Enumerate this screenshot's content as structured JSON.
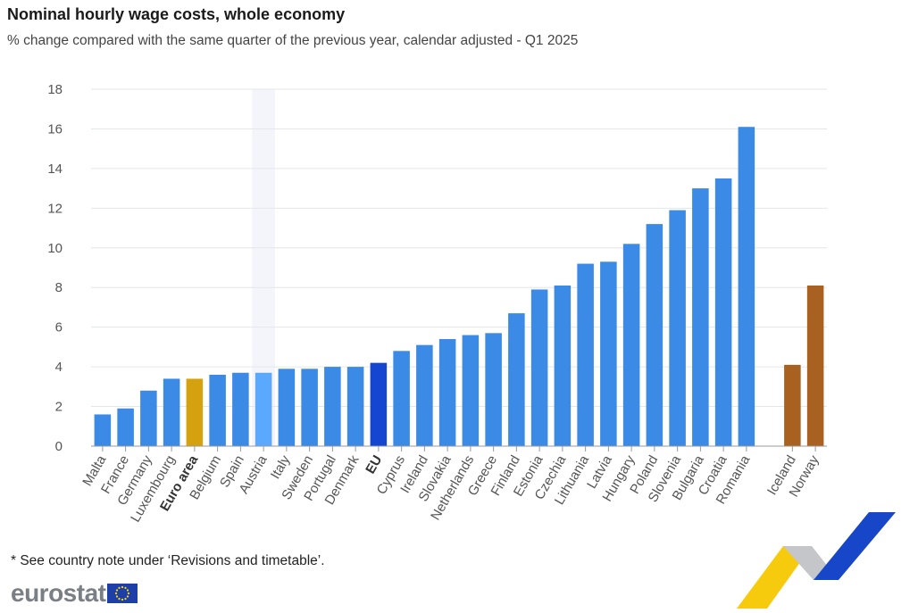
{
  "header": {
    "title": "Nominal hourly wage costs, whole economy",
    "subtitle": "% change compared with the same quarter of the previous year, calendar adjusted - Q1 2025"
  },
  "footnote": "* See country note under ‘Revisions and timetable’.",
  "logo": {
    "text": "eurostat",
    "icon": "eu-flag-icon"
  },
  "colors": {
    "member": "#3b8ae6",
    "euro_area": "#d4a20f",
    "eu": "#1446d2",
    "efta": "#a86120",
    "highlight": "#5aa8ff"
  },
  "chart_data": {
    "type": "bar",
    "title": "Nominal hourly wage costs, whole economy",
    "subtitle": "% change compared with the same quarter of the previous year, calendar adjusted - Q1 2025",
    "xlabel": "",
    "ylabel": "",
    "ylim": [
      0,
      18
    ],
    "yticks": [
      0,
      2,
      4,
      6,
      8,
      10,
      12,
      14,
      16,
      18
    ],
    "grid": true,
    "categories": [
      "Malta",
      "France",
      "Germany",
      "Luxembourg",
      "Euro area",
      "Belgium",
      "Spain",
      "Austria",
      "Italy",
      "Sweden",
      "Portugal",
      "Denmark",
      "EU",
      "Cyprus",
      "Ireland",
      "Slovakia",
      "Netherlands",
      "Greece",
      "Finland",
      "Estonia",
      "Czechia",
      "Lithuania",
      "Latvia",
      "Hungary",
      "Poland",
      "Slovenia",
      "Bulgaria",
      "Croatia",
      "Romania",
      "",
      "Iceland",
      "Norway"
    ],
    "values": [
      1.6,
      1.9,
      2.8,
      3.4,
      3.4,
      3.6,
      3.7,
      3.7,
      3.9,
      3.9,
      4.0,
      4.0,
      4.2,
      4.8,
      5.1,
      5.4,
      5.6,
      5.7,
      6.7,
      7.9,
      8.1,
      9.2,
      9.3,
      10.2,
      11.2,
      11.9,
      13.0,
      13.5,
      16.1,
      null,
      4.1,
      8.1
    ],
    "groups": [
      "member",
      "member",
      "member",
      "member",
      "euro_area",
      "member",
      "member",
      "highlight",
      "member",
      "member",
      "member",
      "member",
      "eu",
      "member",
      "member",
      "member",
      "member",
      "member",
      "member",
      "member",
      "member",
      "member",
      "member",
      "member",
      "member",
      "member",
      "member",
      "member",
      "member",
      "gap",
      "efta",
      "efta"
    ],
    "bold_categories": [
      "Euro area",
      "EU"
    ]
  }
}
